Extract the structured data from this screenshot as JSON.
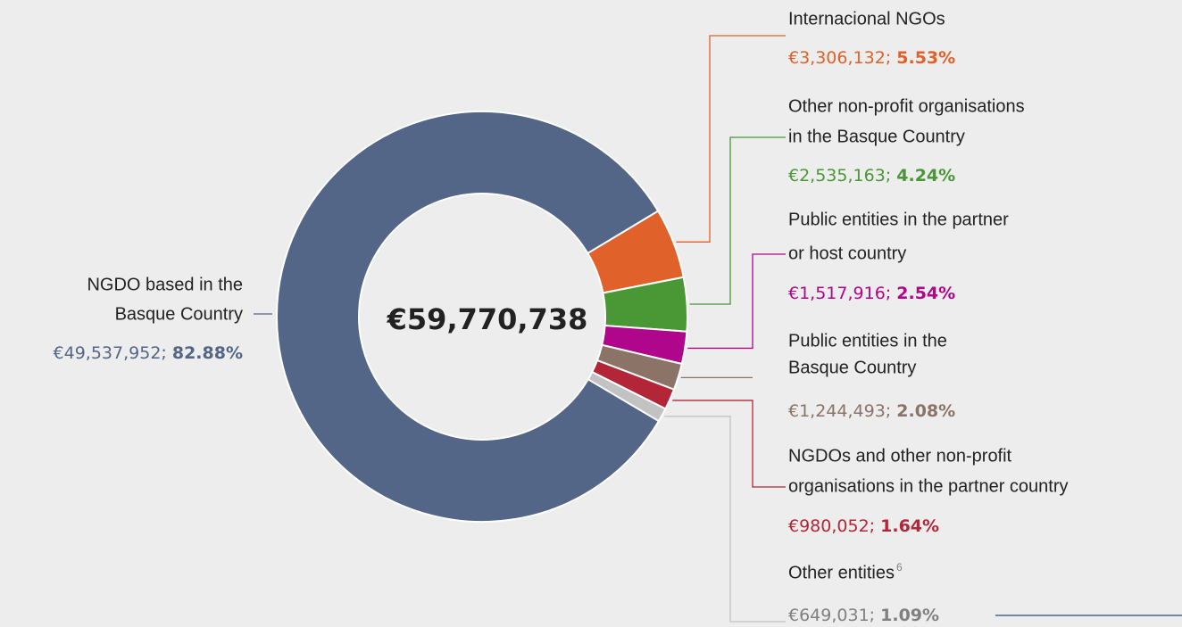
{
  "chart_data": {
    "type": "pie",
    "center_label": "€59,770,738",
    "categories": [
      [
        "NGDO based in the",
        "Basque Country"
      ],
      [
        "Internacional NGOs"
      ],
      [
        "Other non-profit organisations",
        "in the Basque Country"
      ],
      [
        "Public entities in the partner",
        "or host country"
      ],
      [
        "Public entities in the",
        "Basque Country"
      ],
      [
        "NGDOs and other non-profit",
        "organisations in the partner country"
      ],
      [
        "Other entities"
      ]
    ],
    "footnote_mark": "6",
    "values": [
      49537952,
      3306132,
      2535163,
      1517916,
      1244493,
      980052,
      649031
    ],
    "value_labels": [
      "€49,537,952",
      "€3,306,132",
      "€2,535,163",
      "€1,517,916",
      "€1,244,493",
      "€980,052",
      "€649,031"
    ],
    "percentages": [
      82.88,
      5.53,
      4.24,
      2.54,
      2.08,
      1.64,
      1.09
    ],
    "percentage_labels": [
      "82.88%",
      "5.53%",
      "4.24%",
      "2.54%",
      "2.08%",
      "1.64%",
      "1.09%"
    ],
    "colors": [
      "#536688",
      "#e0612a",
      "#4a9735",
      "#b0068c",
      "#8c7368",
      "#b32637",
      "#c2c2c2"
    ],
    "text_colors": [
      "#536688",
      "#e0612a",
      "#4a9735",
      "#b0068c",
      "#8c7368",
      "#b32637",
      "#808080"
    ]
  }
}
